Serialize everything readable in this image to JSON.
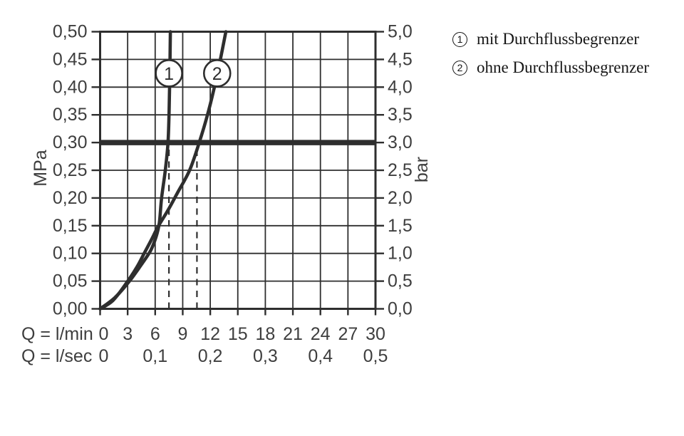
{
  "colors": {
    "ink": "#2e2e2e",
    "grid": "#2f2f2f",
    "label_gray": "#3e3e3e",
    "legend_text": "#161616",
    "background": "#ffffff"
  },
  "legend": {
    "items": [
      {
        "symbol": "1",
        "label": "mit Durchflussbegrenzer"
      },
      {
        "symbol": "2",
        "label": "ohne Durchflussbegrenzer"
      }
    ]
  },
  "chart_data": {
    "type": "line",
    "title": "",
    "grid": "on",
    "x_axis": {
      "row1_label": "Q = l/min",
      "row2_label": "Q = l/sec",
      "min": 0,
      "max": 30,
      "ticks_lmin": [
        {
          "v": 0,
          "label": "0"
        },
        {
          "v": 3,
          "label": "3"
        },
        {
          "v": 6,
          "label": "6"
        },
        {
          "v": 9,
          "label": "9"
        },
        {
          "v": 12,
          "label": "12"
        },
        {
          "v": 15,
          "label": "15"
        },
        {
          "v": 18,
          "label": "18"
        },
        {
          "v": 21,
          "label": "21"
        },
        {
          "v": 24,
          "label": "24"
        },
        {
          "v": 27,
          "label": "27"
        },
        {
          "v": 30,
          "label": "30"
        }
      ],
      "ticks_lsec": [
        {
          "v": 0,
          "label": "0"
        },
        {
          "v": 6,
          "label": "0,1"
        },
        {
          "v": 12,
          "label": "0,2"
        },
        {
          "v": 18,
          "label": "0,3"
        },
        {
          "v": 24,
          "label": "0,4"
        },
        {
          "v": 30,
          "label": "0,5"
        }
      ]
    },
    "y_left": {
      "unit": "MPa",
      "min": 0,
      "max": 0.5,
      "ticks": [
        {
          "v": 0.0,
          "label": "0,00"
        },
        {
          "v": 0.05,
          "label": "0,05"
        },
        {
          "v": 0.1,
          "label": "0,10"
        },
        {
          "v": 0.15,
          "label": "0,15"
        },
        {
          "v": 0.2,
          "label": "0,20"
        },
        {
          "v": 0.25,
          "label": "0,25"
        },
        {
          "v": 0.3,
          "label": "0,30"
        },
        {
          "v": 0.35,
          "label": "0,35"
        },
        {
          "v": 0.4,
          "label": "0,40"
        },
        {
          "v": 0.45,
          "label": "0,45"
        },
        {
          "v": 0.5,
          "label": "0,50"
        }
      ]
    },
    "y_right": {
      "unit": "bar",
      "min": 0,
      "max": 5,
      "ticks": [
        {
          "v": 0.0,
          "label": "0,0"
        },
        {
          "v": 0.5,
          "label": "0,5"
        },
        {
          "v": 1.0,
          "label": "1,0"
        },
        {
          "v": 1.5,
          "label": "1,5"
        },
        {
          "v": 2.0,
          "label": "2,0"
        },
        {
          "v": 2.5,
          "label": "2,5"
        },
        {
          "v": 3.0,
          "label": "3,0"
        },
        {
          "v": 3.5,
          "label": "3,5"
        },
        {
          "v": 4.0,
          "label": "4,0"
        },
        {
          "v": 4.5,
          "label": "4,5"
        },
        {
          "v": 5.0,
          "label": "5,0"
        }
      ]
    },
    "series": [
      {
        "name": "mit Durchflussbegrenzer",
        "marker": "1",
        "points": [
          [
            0,
            0
          ],
          [
            1.6,
            0.02
          ],
          [
            3.2,
            0.05
          ],
          [
            4.5,
            0.08
          ],
          [
            5.5,
            0.105
          ],
          [
            6.1,
            0.13
          ],
          [
            6.45,
            0.155
          ],
          [
            6.7,
            0.2
          ],
          [
            7.1,
            0.25
          ],
          [
            7.4,
            0.3
          ],
          [
            7.52,
            0.36
          ],
          [
            7.6,
            0.43
          ],
          [
            7.65,
            0.5
          ]
        ]
      },
      {
        "name": "ohne Durchflussbegrenzer",
        "marker": "2",
        "points": [
          [
            0,
            0
          ],
          [
            1.4,
            0.015
          ],
          [
            2.8,
            0.045
          ],
          [
            4.0,
            0.075
          ],
          [
            4.8,
            0.1
          ],
          [
            5.6,
            0.125
          ],
          [
            6.3,
            0.148
          ],
          [
            7.4,
            0.178
          ],
          [
            8.45,
            0.21
          ],
          [
            9.75,
            0.25
          ],
          [
            10.8,
            0.3
          ],
          [
            11.7,
            0.35
          ],
          [
            12.45,
            0.4
          ],
          [
            13.1,
            0.45
          ],
          [
            13.7,
            0.5
          ]
        ]
      }
    ],
    "reference_line": {
      "p_mpa": 0.3,
      "p_bar": 3.0
    },
    "dashed_lines": [
      {
        "q": 7.5,
        "p_top": 0.292
      },
      {
        "q": 10.55,
        "p_top": 0.292
      }
    ],
    "markers": [
      {
        "label": "1",
        "q": 7.5,
        "p": 0.425
      },
      {
        "label": "2",
        "q": 12.75,
        "p": 0.425
      }
    ]
  }
}
